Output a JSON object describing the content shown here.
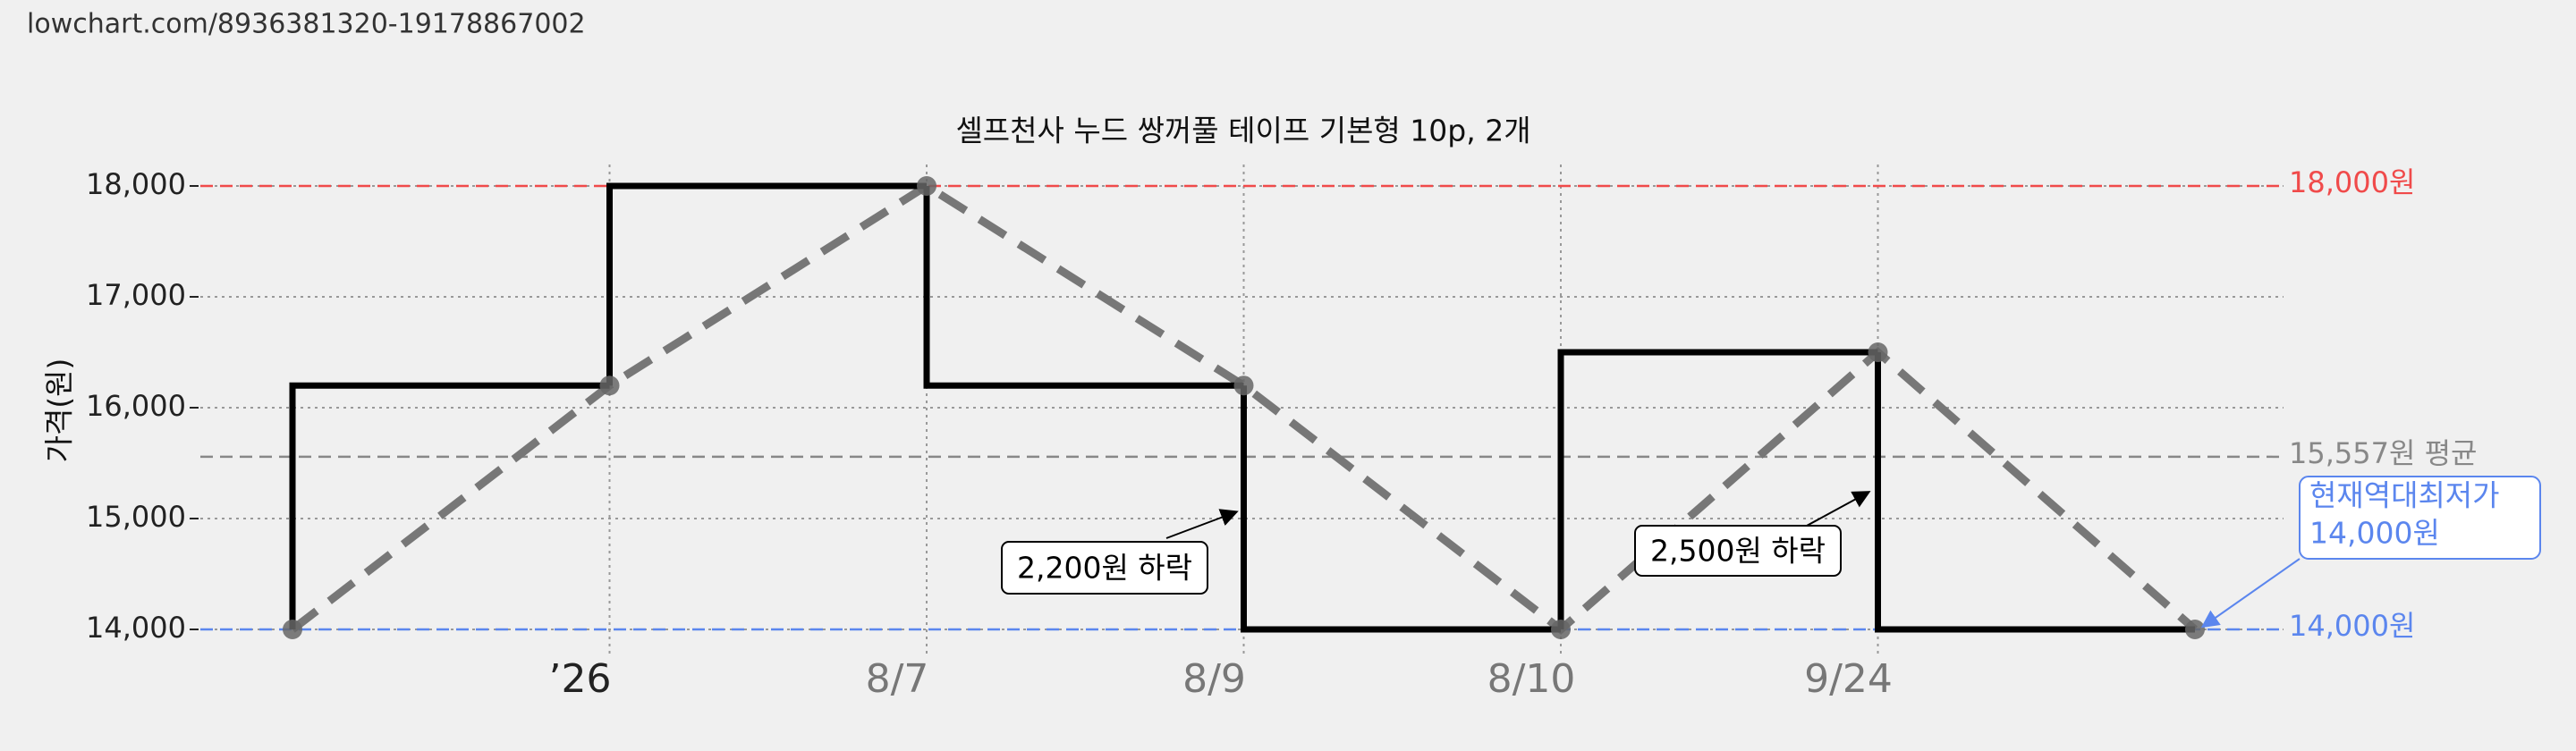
{
  "url": "lowchart.com/8936381320-19178867002",
  "chart_data": {
    "type": "step-line",
    "title": "셀프천사 누드 쌍꺼풀 테이프 기본형 10p, 2개",
    "y_label": "가격(원)",
    "categories": [
      null,
      "’26",
      "8/7",
      "8/9",
      "8/10",
      "9/24",
      null
    ],
    "values": [
      14000,
      16200,
      18000,
      16200,
      14000,
      16500,
      14000
    ],
    "step_color": "#000000",
    "line_color": "#777777",
    "ylim": [
      14000,
      18000
    ],
    "yticks": [
      {
        "value": 14000,
        "label": "14,000"
      },
      {
        "value": 15000,
        "label": "15,000"
      },
      {
        "value": 16000,
        "label": "16,000"
      },
      {
        "value": 17000,
        "label": "17,000"
      },
      {
        "value": 18000,
        "label": "18,000"
      }
    ],
    "grid": true,
    "ref_lines": [
      {
        "value": 18000,
        "label": "18,000원",
        "color": "#f04a4a"
      },
      {
        "value": 15557,
        "label": "15,557원 평균",
        "color": "#888888"
      },
      {
        "value": 14000,
        "label": "14,000원",
        "color": "#5b86ee"
      }
    ],
    "annotations": [
      {
        "text": "2,200원 하락"
      },
      {
        "text": "2,500원 하락"
      },
      {
        "lines": [
          "현재역대최저가",
          "14,000원"
        ]
      }
    ]
  }
}
